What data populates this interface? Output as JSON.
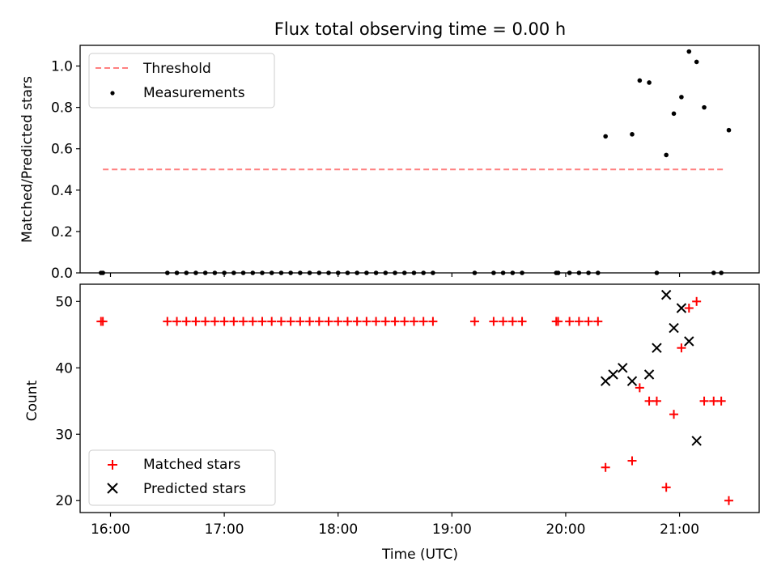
{
  "chart_data": [
    {
      "type": "scatter",
      "title": "Flux total observing time = 0.00 h",
      "xlabel": "",
      "ylabel": "Matched/Predicted stars",
      "xlim": [
        "15:44",
        "21:42"
      ],
      "ylim": [
        0,
        1.1
      ],
      "yticks": [
        "0.0",
        "0.2",
        "0.4",
        "0.6",
        "0.8",
        "1.0"
      ],
      "xticks": [
        "16:00",
        "17:00",
        "18:00",
        "19:00",
        "20:00",
        "21:00"
      ],
      "legend_position": "top-left",
      "series": [
        {
          "name": "Threshold",
          "kind": "dashed-line",
          "color": "#ff8080",
          "x": [
            "15:56",
            "21:24"
          ],
          "y": [
            0.5,
            0.5
          ]
        },
        {
          "name": "Measurements",
          "kind": "dots",
          "color": "#000000",
          "x": [
            "15:55",
            "15:56",
            "16:30",
            "16:35",
            "16:40",
            "16:45",
            "16:50",
            "16:55",
            "17:00",
            "17:05",
            "17:10",
            "17:15",
            "17:20",
            "17:25",
            "17:30",
            "17:35",
            "17:40",
            "17:45",
            "17:50",
            "17:55",
            "18:00",
            "18:05",
            "18:10",
            "18:15",
            "18:20",
            "18:25",
            "18:30",
            "18:35",
            "18:40",
            "18:45",
            "18:50",
            "19:12",
            "19:22",
            "19:27",
            "19:32",
            "19:37",
            "19:55",
            "19:56",
            "20:02",
            "20:07",
            "20:12",
            "20:17",
            "20:21",
            "20:35",
            "20:39",
            "20:44",
            "20:48",
            "20:53",
            "20:57",
            "21:01",
            "21:05",
            "21:09",
            "21:13",
            "21:18",
            "21:22",
            "21:26"
          ],
          "y": [
            0,
            0,
            0,
            0,
            0,
            0,
            0,
            0,
            0,
            0,
            0,
            0,
            0,
            0,
            0,
            0,
            0,
            0,
            0,
            0,
            0,
            0,
            0,
            0,
            0,
            0,
            0,
            0,
            0,
            0,
            0,
            0,
            0,
            0,
            0,
            0,
            0,
            0,
            0,
            0,
            0,
            0,
            0.66,
            0.67,
            0.93,
            0.92,
            0,
            0.57,
            0.77,
            0.85,
            1.07,
            1.02,
            0.8,
            0,
            0,
            0.69
          ]
        }
      ]
    },
    {
      "type": "scatter",
      "title": "",
      "xlabel": "Time (UTC)",
      "ylabel": "Count",
      "xlim": [
        "15:44",
        "21:42"
      ],
      "ylim": [
        18.2,
        52.6
      ],
      "yticks": [
        "20",
        "30",
        "40",
        "50"
      ],
      "xticks": [
        "16:00",
        "17:00",
        "18:00",
        "19:00",
        "20:00",
        "21:00"
      ],
      "legend_position": "bottom-left",
      "series": [
        {
          "name": "Matched stars",
          "kind": "plus",
          "color": "#ff0000",
          "x": [
            "15:55",
            "15:56",
            "16:30",
            "16:35",
            "16:40",
            "16:45",
            "16:50",
            "16:55",
            "17:00",
            "17:05",
            "17:10",
            "17:15",
            "17:20",
            "17:25",
            "17:30",
            "17:35",
            "17:40",
            "17:45",
            "17:50",
            "17:55",
            "18:00",
            "18:05",
            "18:10",
            "18:15",
            "18:20",
            "18:25",
            "18:30",
            "18:35",
            "18:40",
            "18:45",
            "18:50",
            "19:12",
            "19:22",
            "19:27",
            "19:32",
            "19:37",
            "19:55",
            "19:56",
            "20:02",
            "20:07",
            "20:12",
            "20:17",
            "20:21",
            "20:35",
            "20:39",
            "20:44",
            "20:48",
            "20:53",
            "20:57",
            "21:01",
            "21:05",
            "21:09",
            "21:13",
            "21:18",
            "21:22",
            "21:26"
          ],
          "y": [
            47,
            47,
            47,
            47,
            47,
            47,
            47,
            47,
            47,
            47,
            47,
            47,
            47,
            47,
            47,
            47,
            47,
            47,
            47,
            47,
            47,
            47,
            47,
            47,
            47,
            47,
            47,
            47,
            47,
            47,
            47,
            47,
            47,
            47,
            47,
            47,
            47,
            47,
            47,
            47,
            47,
            47,
            25,
            26,
            37,
            35,
            35,
            22,
            33,
            43,
            49,
            50,
            35,
            35,
            35,
            20
          ]
        },
        {
          "name": "Predicted stars",
          "kind": "x",
          "color": "#000000",
          "x": [
            "20:21",
            "20:25",
            "20:30",
            "20:35",
            "20:44",
            "20:48",
            "20:53",
            "20:57",
            "21:01",
            "21:05",
            "21:09"
          ],
          "y": [
            38,
            39,
            40,
            38,
            39,
            43,
            51,
            46,
            49,
            44,
            29
          ]
        }
      ]
    }
  ]
}
